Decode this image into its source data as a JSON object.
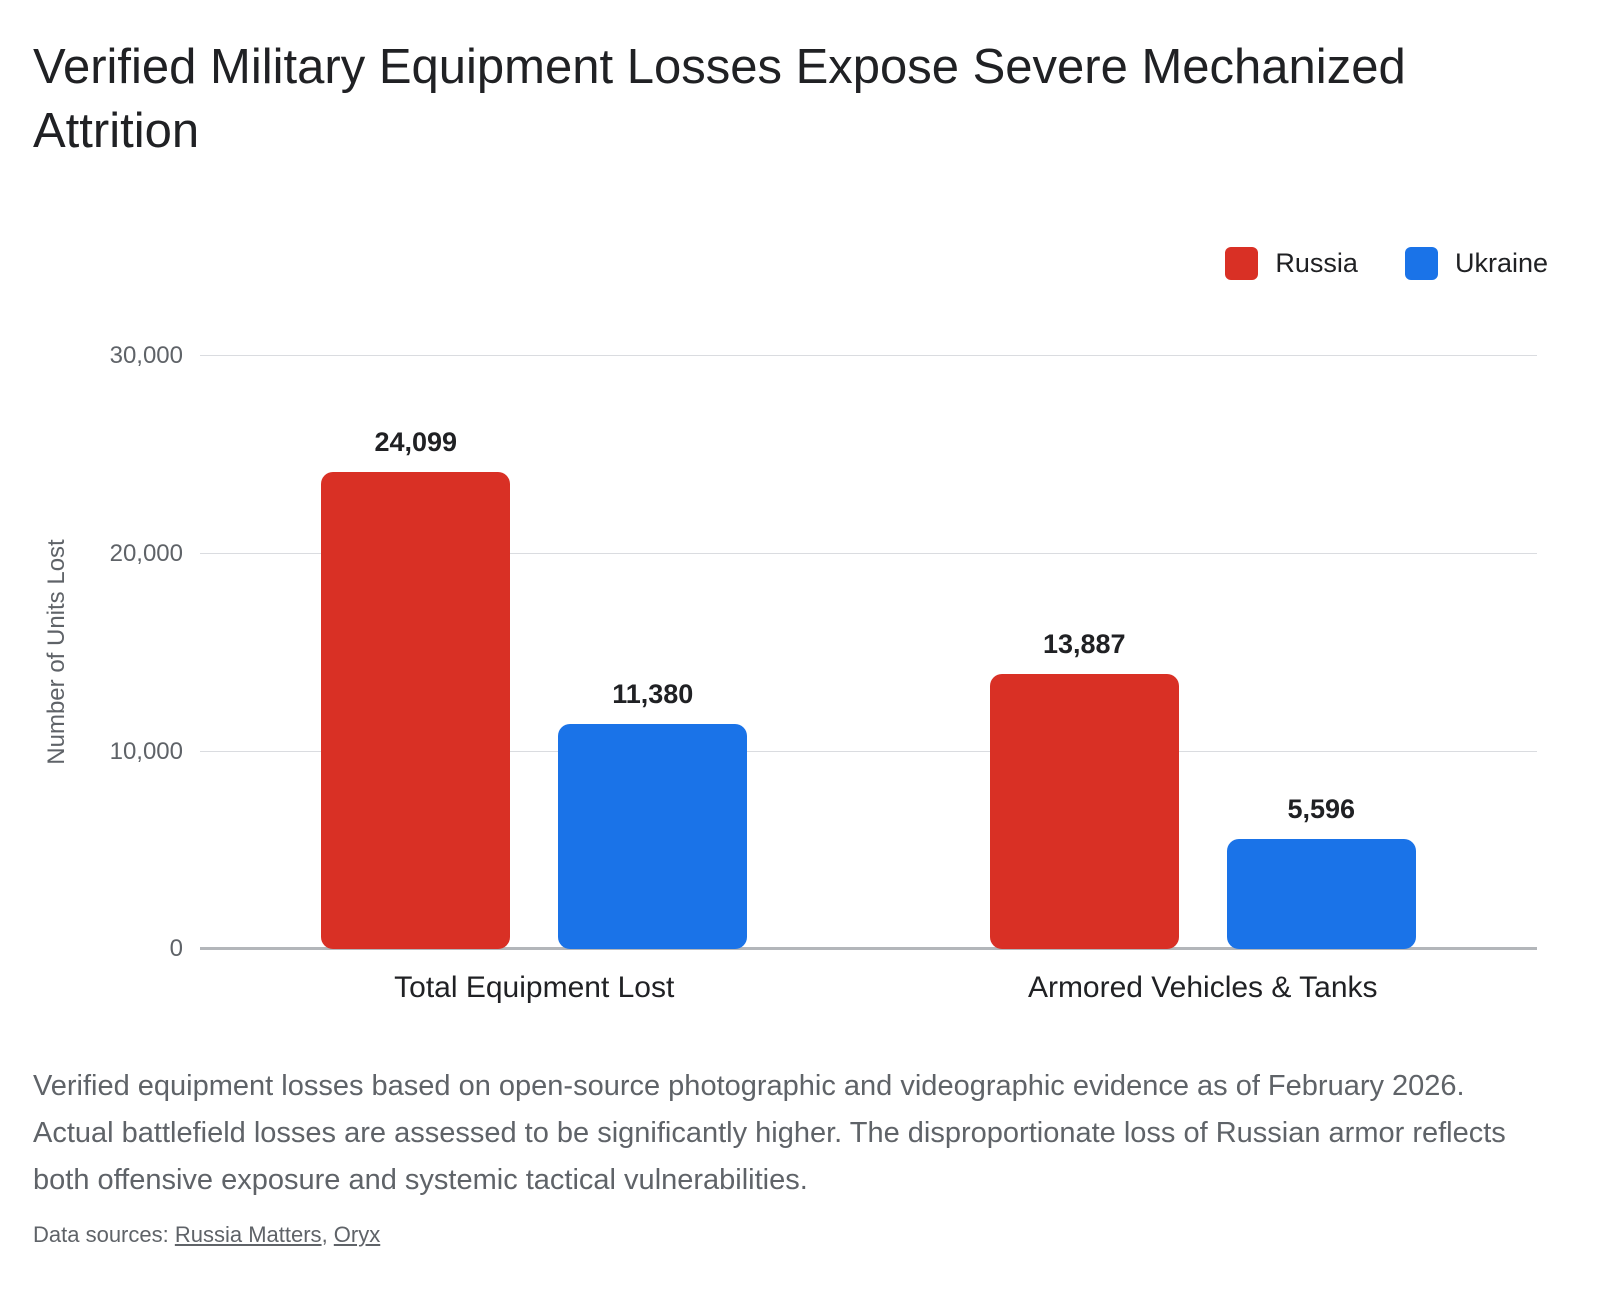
{
  "title": "Verified Military Equipment Losses Expose Severe Mechanized Attrition",
  "chart_data": {
    "type": "bar",
    "categories": [
      "Total Equipment Lost",
      "Armored Vehicles & Tanks"
    ],
    "series": [
      {
        "name": "Russia",
        "color": "#d93025",
        "values": [
          24099,
          13887
        ],
        "labels": [
          "24,099",
          "13,887"
        ]
      },
      {
        "name": "Ukraine",
        "color": "#1a73e8",
        "values": [
          11380,
          5596
        ],
        "labels": [
          "11,380",
          "5,596"
        ]
      }
    ],
    "title": "Verified Military Equipment Losses Expose Severe Mechanized Attrition",
    "xlabel": "",
    "ylabel": "Number of Units Lost",
    "ylim": [
      0,
      30000
    ],
    "yticks": [
      "30,000",
      "20,000",
      "10,000",
      "0"
    ],
    "grid": true,
    "legend_position": "top-right"
  },
  "footer": {
    "text": "Verified equipment losses based on open-source photographic and videographic evidence as of February 2026. Actual battlefield losses are assessed to be significantly higher. The disproportionate loss of Russian armor reflects both offensive exposure and systemic tactical vulnerabilities."
  },
  "sources": {
    "prefix": "Data sources: ",
    "separator": ", ",
    "links": [
      {
        "label": "Russia Matters"
      },
      {
        "label": "Oryx"
      }
    ]
  }
}
